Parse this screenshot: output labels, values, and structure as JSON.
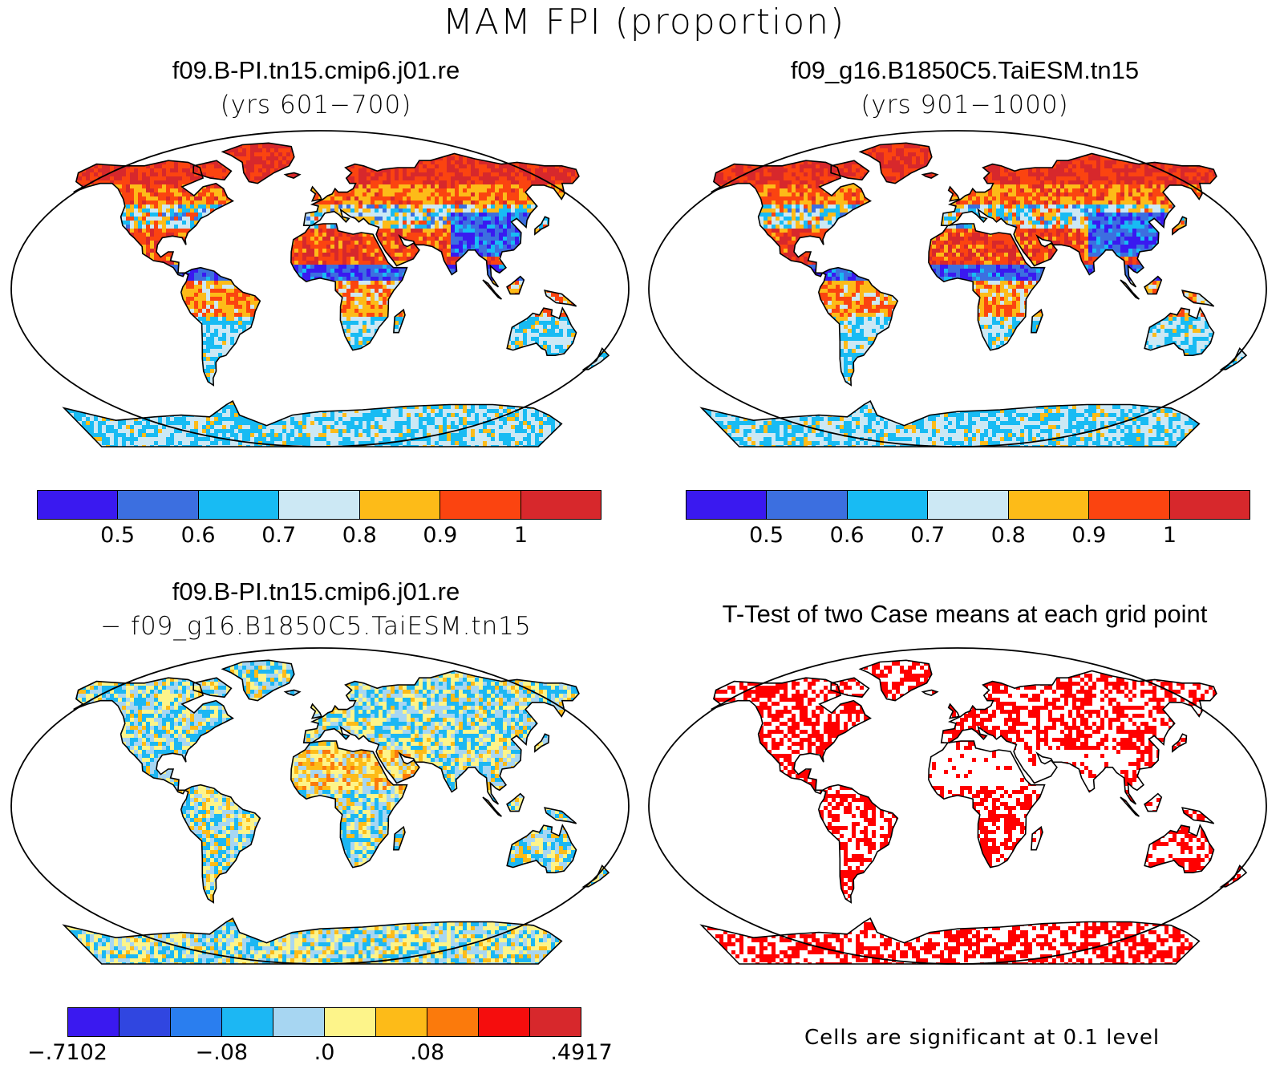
{
  "figure": {
    "title": "MAM FPI (proportion)"
  },
  "panels": {
    "case1": {
      "title": "f09.B-PI.tn15.cmip6.j01.re",
      "subtitle": "(yrs 601−700)"
    },
    "case2": {
      "title": "f09_g16.B1850C5.TaiESM.tn15",
      "subtitle": "(yrs 901−1000)"
    },
    "diff": {
      "title": "f09.B-PI.tn15.cmip6.j01.re",
      "subtitle": "− f09_g16.B1850C5.TaiESM.tn15"
    },
    "ttest": {
      "title": "T-Test of two Case means at each grid point",
      "note": "Cells are significant at 0.1 level"
    }
  },
  "colorbars": {
    "abs": {
      "colors": [
        "#3a19f0",
        "#3c6fe0",
        "#18bbf3",
        "#cce8f4",
        "#fdbb18",
        "#fb4410",
        "#d7282c"
      ],
      "ticks": [
        "0.5",
        "0.6",
        "0.7",
        "0.8",
        "0.9",
        "1"
      ]
    },
    "diff": {
      "colors": [
        "#3a19f0",
        "#3046e0",
        "#2a7eef",
        "#1cb7f3",
        "#a7d6f2",
        "#fdf48a",
        "#fdbb18",
        "#fb7a0c",
        "#f50d0d",
        "#d7282c"
      ],
      "ticks": [
        "−.7102",
        "−.08",
        ".0",
        ".08",
        ".4917"
      ]
    },
    "significance_color": "#ff0000"
  }
}
